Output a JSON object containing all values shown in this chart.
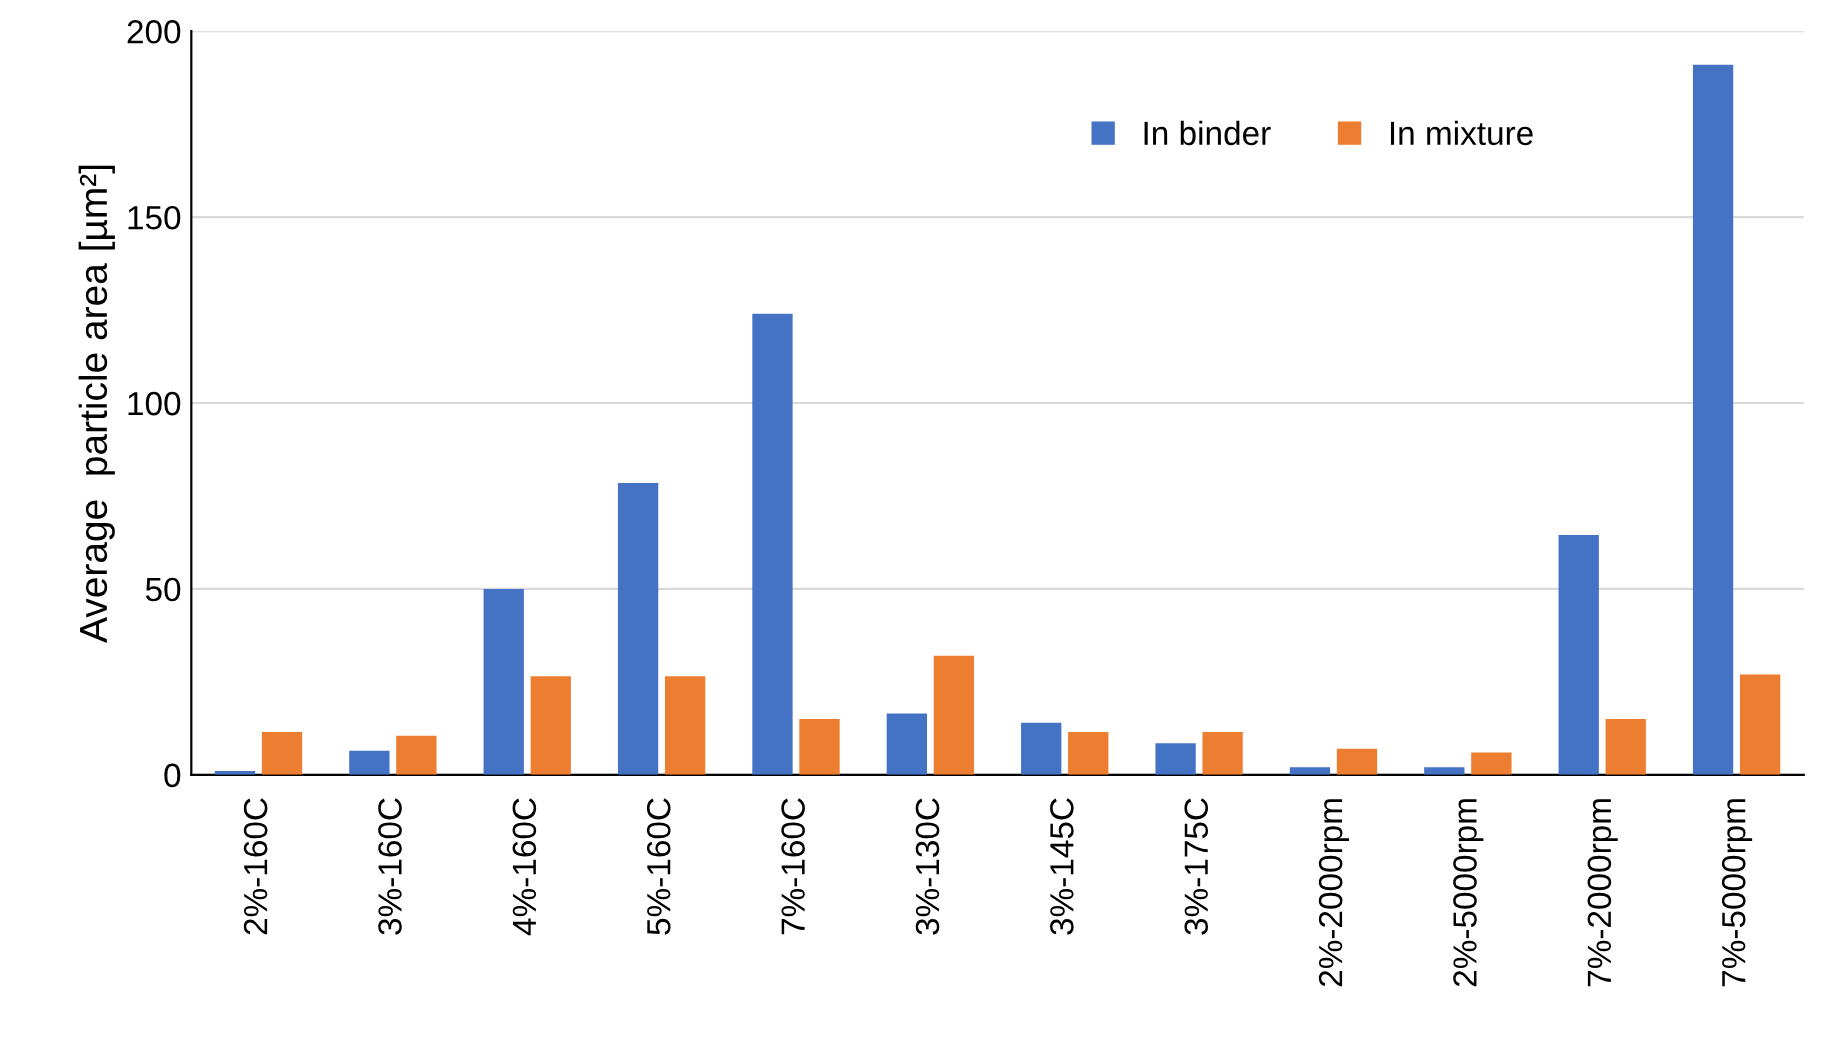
{
  "chart_data": {
    "type": "bar",
    "ylabel": "Average  particle area [µm²]",
    "categories": [
      "2%-160C",
      "3%-160C",
      "4%-160C",
      "5%-160C",
      "7%-160C",
      "3%-130C",
      "3%-145C",
      "3%-175C",
      "2%-2000rpm",
      "2%-5000rpm",
      "7%-2000rpm",
      "7%-5000rpm"
    ],
    "series": [
      {
        "name": "In binder",
        "color": "#4472c4",
        "values": [
          1,
          6.5,
          50,
          78.5,
          124,
          16.5,
          14,
          8.5,
          2,
          2,
          64.5,
          191
        ]
      },
      {
        "name": "In mixture",
        "color": "#ed7d31",
        "values": [
          11.5,
          10.5,
          26.5,
          26.5,
          15,
          32,
          11.5,
          11.5,
          7,
          6,
          15,
          27
        ]
      }
    ],
    "ylim": [
      0,
      200
    ],
    "yticks": [
      0,
      50,
      100,
      150,
      200
    ],
    "grid": "y",
    "legend": "top right"
  }
}
